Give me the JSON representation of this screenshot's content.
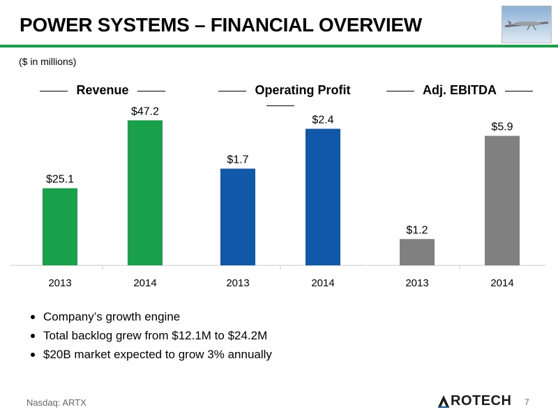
{
  "slide": {
    "title": "POWER SYSTEMS – FINANCIAL OVERVIEW",
    "subtitle": "($ in millions)",
    "accent_color": "#19a04a",
    "footer": "Nasdaq: ARTX",
    "logo_text": "ROTECH",
    "logo_icon": "chevron-up-icon",
    "page_number": "7",
    "image_icon": "drone-aircraft-icon"
  },
  "bullets": [
    "Company’s growth engine",
    "Total backlog grew from $12.1M to $24.2M",
    "$20B market expected to grow 3% annually"
  ],
  "chart_data": [
    {
      "type": "bar",
      "title": "Revenue",
      "categories": [
        "2013",
        "2014"
      ],
      "values": [
        25.1,
        47.2
      ],
      "labels": [
        "$25.1",
        "$47.2"
      ],
      "color": "#19a04a",
      "ylim": [
        0,
        50
      ],
      "xlabel": "",
      "ylabel": ""
    },
    {
      "type": "bar",
      "title": "Operating Profit",
      "categories": [
        "2013",
        "2014"
      ],
      "values": [
        1.7,
        2.4
      ],
      "labels": [
        "$1.7",
        "$2.4"
      ],
      "color": "#1159a8",
      "ylim": [
        0,
        2.7
      ],
      "xlabel": "",
      "ylabel": ""
    },
    {
      "type": "bar",
      "title": "Adj. EBITDA",
      "categories": [
        "2013",
        "2014"
      ],
      "values": [
        1.2,
        5.9
      ],
      "labels": [
        "$1.2",
        "$5.9"
      ],
      "color": "#808080",
      "ylim": [
        0,
        7
      ],
      "xlabel": "",
      "ylabel": ""
    }
  ]
}
